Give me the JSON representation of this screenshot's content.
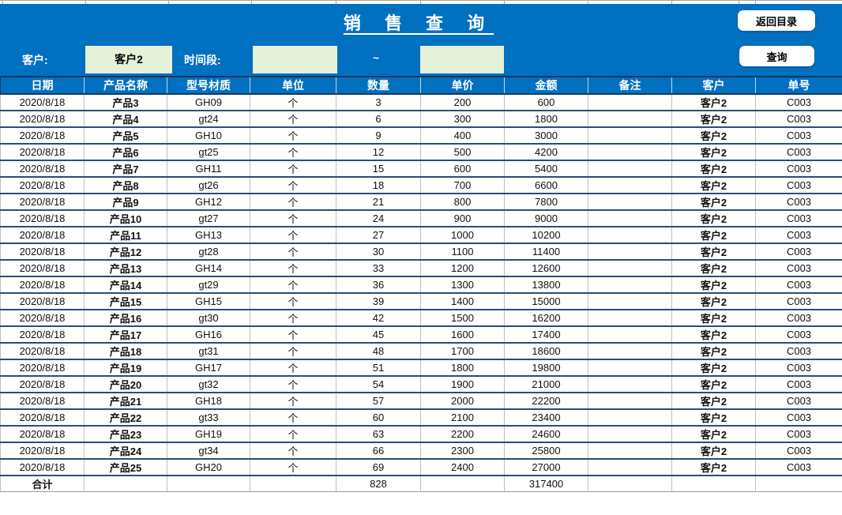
{
  "title": "销 售 查 询",
  "buttons": {
    "back": "返回目录",
    "query": "查询"
  },
  "filters": {
    "customer_label": "客户:",
    "customer_value": "客户2",
    "period_label": "时间段:",
    "period_from": "",
    "period_to": "",
    "separator": "~"
  },
  "colors": {
    "banner_blue": "#0070c0",
    "input_green": "#e6f1da",
    "grid_dark": "#2c4d74",
    "grid_gray": "#bfbfbf"
  },
  "table": {
    "headers": [
      "日期",
      "产品名称",
      "型号材质",
      "单位",
      "数量",
      "单价",
      "金额",
      "备注",
      "客户",
      "单号"
    ],
    "rows": [
      [
        "2020/8/18",
        "产品3",
        "GH09",
        "个",
        "3",
        "200",
        "600",
        "",
        "客户2",
        "C003"
      ],
      [
        "2020/8/18",
        "产品4",
        "gt24",
        "个",
        "6",
        "300",
        "1800",
        "",
        "客户2",
        "C003"
      ],
      [
        "2020/8/18",
        "产品5",
        "GH10",
        "个",
        "9",
        "400",
        "3000",
        "",
        "客户2",
        "C003"
      ],
      [
        "2020/8/18",
        "产品6",
        "gt25",
        "个",
        "12",
        "500",
        "4200",
        "",
        "客户2",
        "C003"
      ],
      [
        "2020/8/18",
        "产品7",
        "GH11",
        "个",
        "15",
        "600",
        "5400",
        "",
        "客户2",
        "C003"
      ],
      [
        "2020/8/18",
        "产品8",
        "gt26",
        "个",
        "18",
        "700",
        "6600",
        "",
        "客户2",
        "C003"
      ],
      [
        "2020/8/18",
        "产品9",
        "GH12",
        "个",
        "21",
        "800",
        "7800",
        "",
        "客户2",
        "C003"
      ],
      [
        "2020/8/18",
        "产品10",
        "gt27",
        "个",
        "24",
        "900",
        "9000",
        "",
        "客户2",
        "C003"
      ],
      [
        "2020/8/18",
        "产品11",
        "GH13",
        "个",
        "27",
        "1000",
        "10200",
        "",
        "客户2",
        "C003"
      ],
      [
        "2020/8/18",
        "产品12",
        "gt28",
        "个",
        "30",
        "1100",
        "11400",
        "",
        "客户2",
        "C003"
      ],
      [
        "2020/8/18",
        "产品13",
        "GH14",
        "个",
        "33",
        "1200",
        "12600",
        "",
        "客户2",
        "C003"
      ],
      [
        "2020/8/18",
        "产品14",
        "gt29",
        "个",
        "36",
        "1300",
        "13800",
        "",
        "客户2",
        "C003"
      ],
      [
        "2020/8/18",
        "产品15",
        "GH15",
        "个",
        "39",
        "1400",
        "15000",
        "",
        "客户2",
        "C003"
      ],
      [
        "2020/8/18",
        "产品16",
        "gt30",
        "个",
        "42",
        "1500",
        "16200",
        "",
        "客户2",
        "C003"
      ],
      [
        "2020/8/18",
        "产品17",
        "GH16",
        "个",
        "45",
        "1600",
        "17400",
        "",
        "客户2",
        "C003"
      ],
      [
        "2020/8/18",
        "产品18",
        "gt31",
        "个",
        "48",
        "1700",
        "18600",
        "",
        "客户2",
        "C003"
      ],
      [
        "2020/8/18",
        "产品19",
        "GH17",
        "个",
        "51",
        "1800",
        "19800",
        "",
        "客户2",
        "C003"
      ],
      [
        "2020/8/18",
        "产品20",
        "gt32",
        "个",
        "54",
        "1900",
        "21000",
        "",
        "客户2",
        "C003"
      ],
      [
        "2020/8/18",
        "产品21",
        "GH18",
        "个",
        "57",
        "2000",
        "22200",
        "",
        "客户2",
        "C003"
      ],
      [
        "2020/8/18",
        "产品22",
        "gt33",
        "个",
        "60",
        "2100",
        "23400",
        "",
        "客户2",
        "C003"
      ],
      [
        "2020/8/18",
        "产品23",
        "GH19",
        "个",
        "63",
        "2200",
        "24600",
        "",
        "客户2",
        "C003"
      ],
      [
        "2020/8/18",
        "产品24",
        "gt34",
        "个",
        "66",
        "2300",
        "25800",
        "",
        "客户2",
        "C003"
      ],
      [
        "2020/8/18",
        "产品25",
        "GH20",
        "个",
        "69",
        "2400",
        "27000",
        "",
        "客户2",
        "C003"
      ]
    ],
    "total": {
      "label": "合计",
      "quantity": "828",
      "amount": "317400"
    }
  }
}
